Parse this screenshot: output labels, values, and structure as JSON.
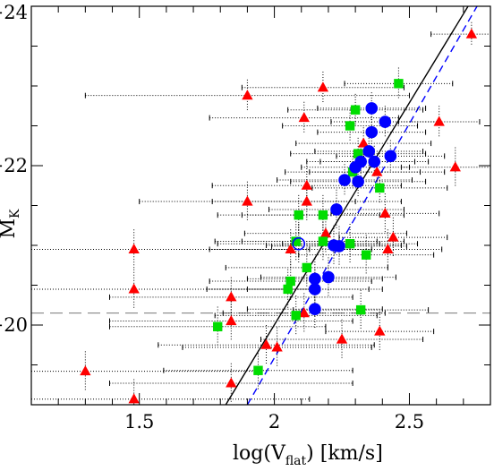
{
  "chart_data": {
    "type": "scatter",
    "title": "",
    "xlabel": "log(V",
    "xlabel_sub": "flat",
    "xlabel_tail": ") [km/s]",
    "ylabel": "M",
    "ylabel_sub": "K",
    "xlim": [
      1.1,
      2.8
    ],
    "ylim": [
      -19,
      -24
    ],
    "inverted_y": true,
    "grid": false,
    "x_ticks": [
      1.5,
      2,
      2.5
    ],
    "x_tick_labels": [
      "1.5",
      "2",
      "2.5"
    ],
    "y_ticks": [
      -20,
      -22,
      -24
    ],
    "y_tick_labels": [
      "−20",
      "−22",
      "−24"
    ],
    "colors": {
      "red": "#ff0000",
      "green": "#00dd00",
      "blue": "#0000ff",
      "solid_line": "#000000",
      "dashed_line": "#0000ff",
      "reference_line": "#777777"
    },
    "reference_line": {
      "y": -20.15,
      "style": "long-dash"
    },
    "fit_lines": [
      {
        "name": "",
        "style": "solid",
        "color": "#000000",
        "points": [
          [
            1.82,
            -19.0
          ],
          [
            2.78,
            -24.35
          ]
        ]
      },
      {
        "name": "",
        "style": "dashed",
        "color": "#0000ff",
        "points": [
          [
            1.9,
            -19.0
          ],
          [
            2.81,
            -24.35
          ]
        ]
      }
    ],
    "series": [
      {
        "name": "",
        "marker": "triangle",
        "color": "#ff0000",
        "points": [
          {
            "x": 2.73,
            "y": -23.65,
            "xerr": 0.15,
            "yerr": 0.15
          },
          {
            "x": 2.18,
            "y": -22.98,
            "xerr": 0.3,
            "yerr": 0.2
          },
          {
            "x": 1.9,
            "y": -22.88,
            "xerr": 0.6,
            "yerr": 0.2
          },
          {
            "x": 2.11,
            "y": -22.6,
            "xerr": 0.35,
            "yerr": 0.2
          },
          {
            "x": 2.61,
            "y": -22.55,
            "xerr": 0.15,
            "yerr": 0.2
          },
          {
            "x": 2.33,
            "y": -22.28,
            "xerr": 0.25,
            "yerr": 0.2
          },
          {
            "x": 2.38,
            "y": -21.92,
            "xerr": 0.25,
            "yerr": 0.2
          },
          {
            "x": 2.67,
            "y": -21.98,
            "xerr": 0.2,
            "yerr": 0.25
          },
          {
            "x": 2.12,
            "y": -21.75,
            "xerr": 0.35,
            "yerr": 0.25
          },
          {
            "x": 1.9,
            "y": -21.55,
            "xerr": 0.4,
            "yerr": 0.25
          },
          {
            "x": 2.12,
            "y": -21.55,
            "xerr": 0.35,
            "yerr": 0.25
          },
          {
            "x": 2.41,
            "y": -21.4,
            "xerr": 0.2,
            "yerr": 0.25
          },
          {
            "x": 2.19,
            "y": -21.15,
            "xerr": 0.3,
            "yerr": 0.25
          },
          {
            "x": 2.44,
            "y": -21.1,
            "xerr": 0.2,
            "yerr": 0.25
          },
          {
            "x": 1.48,
            "y": -20.95,
            "xerr": 0.65,
            "yerr": 0.25
          },
          {
            "x": 2.42,
            "y": -20.95,
            "xerr": 0.2,
            "yerr": 0.25
          },
          {
            "x": 2.06,
            "y": -20.95,
            "xerr": 0.3,
            "yerr": 0.25
          },
          {
            "x": 1.48,
            "y": -20.45,
            "xerr": 0.65,
            "yerr": 0.25
          },
          {
            "x": 1.84,
            "y": -20.35,
            "xerr": 0.45,
            "yerr": 0.25
          },
          {
            "x": 2.11,
            "y": -20.15,
            "xerr": 0.3,
            "yerr": 0.25
          },
          {
            "x": 1.84,
            "y": -20.05,
            "xerr": 0.45,
            "yerr": 0.25
          },
          {
            "x": 2.39,
            "y": -19.92,
            "xerr": 0.2,
            "yerr": 0.25
          },
          {
            "x": 2.25,
            "y": -19.82,
            "xerr": 0.3,
            "yerr": 0.25
          },
          {
            "x": 1.97,
            "y": -19.75,
            "xerr": 0.4,
            "yerr": 0.25
          },
          {
            "x": 2.01,
            "y": -19.72,
            "xerr": 0.35,
            "yerr": 0.25
          },
          {
            "x": 1.3,
            "y": -19.42,
            "xerr": 0.65,
            "yerr": 0.25
          },
          {
            "x": 1.84,
            "y": -19.27,
            "xerr": 0.45,
            "yerr": 0.25
          },
          {
            "x": 1.48,
            "y": -19.07,
            "xerr": 0.65,
            "yerr": 0.25
          }
        ]
      },
      {
        "name": "",
        "marker": "square",
        "color": "#00dd00",
        "points": [
          {
            "x": 2.46,
            "y": -23.03,
            "xerr": 0.2,
            "yerr": 0.2
          },
          {
            "x": 2.3,
            "y": -22.7,
            "xerr": 0.25,
            "yerr": 0.2
          },
          {
            "x": 2.28,
            "y": -22.5,
            "xerr": 0.25,
            "yerr": 0.2
          },
          {
            "x": 2.31,
            "y": -22.15,
            "xerr": 0.25,
            "yerr": 0.2
          },
          {
            "x": 2.29,
            "y": -21.92,
            "xerr": 0.25,
            "yerr": 0.2
          },
          {
            "x": 2.39,
            "y": -21.72,
            "xerr": 0.25,
            "yerr": 0.2
          },
          {
            "x": 2.09,
            "y": -21.38,
            "xerr": 0.3,
            "yerr": 0.25
          },
          {
            "x": 2.18,
            "y": -21.38,
            "xerr": 0.3,
            "yerr": 0.25
          },
          {
            "x": 2.08,
            "y": -21.05,
            "xerr": 0.3,
            "yerr": 0.25
          },
          {
            "x": 2.18,
            "y": -21.05,
            "xerr": 0.3,
            "yerr": 0.25
          },
          {
            "x": 2.28,
            "y": -21.02,
            "xerr": 0.25,
            "yerr": 0.25
          },
          {
            "x": 2.34,
            "y": -20.88,
            "xerr": 0.25,
            "yerr": 0.25
          },
          {
            "x": 2.12,
            "y": -20.72,
            "xerr": 0.3,
            "yerr": 0.25
          },
          {
            "x": 2.06,
            "y": -20.55,
            "xerr": 0.3,
            "yerr": 0.25
          },
          {
            "x": 2.05,
            "y": -20.45,
            "xerr": 0.3,
            "yerr": 0.25
          },
          {
            "x": 2.32,
            "y": -20.19,
            "xerr": 0.25,
            "yerr": 0.25
          },
          {
            "x": 2.08,
            "y": -20.12,
            "xerr": 0.3,
            "yerr": 0.25
          },
          {
            "x": 1.79,
            "y": -19.98,
            "xerr": 0.4,
            "yerr": 0.25
          },
          {
            "x": 1.94,
            "y": -19.43,
            "xerr": 0.35,
            "yerr": 0.25
          }
        ]
      },
      {
        "name": "",
        "marker": "circle",
        "color": "#0000ff",
        "points": [
          {
            "x": 2.36,
            "y": -22.72,
            "xerr": 0.2,
            "yerr": 0.2
          },
          {
            "x": 2.41,
            "y": -22.55,
            "xerr": 0.2,
            "yerr": 0.2
          },
          {
            "x": 2.36,
            "y": -22.42,
            "xerr": 0.2,
            "yerr": 0.2
          },
          {
            "x": 2.35,
            "y": -22.18,
            "xerr": 0.2,
            "yerr": 0.2
          },
          {
            "x": 2.43,
            "y": -22.12,
            "xerr": 0.2,
            "yerr": 0.2
          },
          {
            "x": 2.32,
            "y": -22.05,
            "xerr": 0.2,
            "yerr": 0.2
          },
          {
            "x": 2.37,
            "y": -22.05,
            "xerr": 0.2,
            "yerr": 0.2
          },
          {
            "x": 2.3,
            "y": -21.98,
            "xerr": 0.2,
            "yerr": 0.2
          },
          {
            "x": 2.26,
            "y": -21.82,
            "xerr": 0.25,
            "yerr": 0.2
          },
          {
            "x": 2.31,
            "y": -21.8,
            "xerr": 0.25,
            "yerr": 0.2
          },
          {
            "x": 2.23,
            "y": -21.45,
            "xerr": 0.25,
            "yerr": 0.25
          },
          {
            "x": 2.09,
            "y": -21.02,
            "xerr": 0.3,
            "yerr": 0.25,
            "open": true
          },
          {
            "x": 2.22,
            "y": -21.0,
            "xerr": 0.25,
            "yerr": 0.25
          },
          {
            "x": 2.24,
            "y": -20.99,
            "xerr": 0.25,
            "yerr": 0.25
          },
          {
            "x": 2.2,
            "y": -20.6,
            "xerr": 0.25,
            "yerr": 0.25
          },
          {
            "x": 2.15,
            "y": -20.58,
            "xerr": 0.25,
            "yerr": 0.25
          },
          {
            "x": 2.15,
            "y": -20.45,
            "xerr": 0.25,
            "yerr": 0.25
          },
          {
            "x": 2.15,
            "y": -20.2,
            "xerr": 0.25,
            "yerr": 0.25
          }
        ]
      }
    ]
  }
}
